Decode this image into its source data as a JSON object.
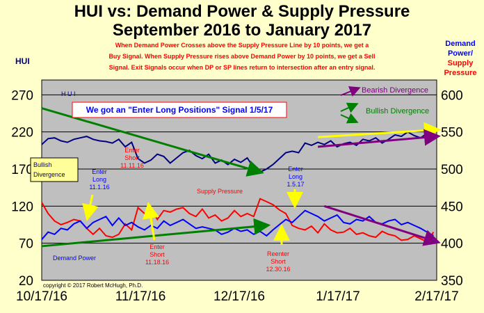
{
  "chart_data": {
    "type": "line",
    "title": "HUI vs: Demand Power & Supply Pressure",
    "subtitle": "September 2016 to January 2017",
    "rule_text": [
      "When Demand Power Crosses  above the Supply Pressure Line by 10 points, we get a",
      "Buy Signal.  When Supply Pressure rises above Demand Power by 10 points, we get a Sell",
      "Signal.  Exit Signals occur when DP or SP lines return to intersection after an entry signal."
    ],
    "left_axis_label": "HUI",
    "right_axis_label": [
      "Demand",
      "Power/",
      "Supply",
      "Pressure"
    ],
    "left_ticks": [
      20,
      70,
      120,
      170,
      220,
      270
    ],
    "right_ticks": [
      350,
      400,
      450,
      500,
      550,
      600
    ],
    "left_ylim": [
      20,
      290
    ],
    "right_ylim": [
      350,
      620
    ],
    "x_ticks": [
      "10/17/16",
      "11/17/16",
      "12/17/16",
      "1/17/17",
      "2/17/17"
    ],
    "x_range": [
      0,
      123
    ],
    "grid": true,
    "copyright": "copyright © 2017  Robert McHugh, Ph.D.",
    "signal_box": "We got an \"Enter Long Positions\" Signal 1/5/17",
    "series": [
      {
        "name": "HUI",
        "color": "#000080",
        "x": [
          0,
          2,
          4,
          6,
          8,
          10,
          12,
          14,
          16,
          18,
          20,
          22,
          24,
          26,
          28,
          30,
          32,
          34,
          36,
          38,
          40,
          42,
          44,
          46,
          48,
          50,
          52,
          54,
          56,
          58,
          60,
          62,
          64,
          66,
          68,
          70,
          72,
          74,
          76,
          78,
          80,
          82,
          84,
          86,
          88,
          90,
          92,
          94,
          96,
          98,
          100,
          102,
          104,
          106,
          108,
          110,
          112,
          114,
          116,
          118,
          120,
          122
        ],
        "values": [
          203,
          211,
          212,
          208,
          206,
          210,
          212,
          214,
          210,
          208,
          207,
          205,
          210,
          200,
          206,
          184,
          178,
          182,
          190,
          187,
          178,
          185,
          192,
          195,
          188,
          184,
          190,
          178,
          182,
          176,
          183,
          179,
          185,
          172,
          166,
          170,
          176,
          184,
          192,
          194,
          192,
          205,
          202,
          206,
          203,
          208,
          200,
          204,
          206,
          202,
          210,
          208,
          212,
          205,
          210,
          216,
          214,
          220,
          215,
          212,
          218,
          210
        ]
      },
      {
        "name": "Supply Pressure",
        "color": "#ff0000",
        "x": [
          0,
          2,
          4,
          6,
          8,
          10,
          12,
          14,
          16,
          18,
          20,
          22,
          24,
          26,
          28,
          30,
          32,
          34,
          36,
          38,
          40,
          42,
          44,
          46,
          48,
          50,
          52,
          54,
          56,
          58,
          60,
          62,
          64,
          66,
          68,
          70,
          72,
          74,
          76,
          78,
          80,
          82,
          84,
          86,
          88,
          90,
          92,
          94,
          96,
          98,
          100,
          102,
          104,
          106,
          108,
          110,
          112,
          114,
          116,
          118,
          120,
          122
        ],
        "values": [
          455,
          440,
          430,
          425,
          428,
          432,
          430,
          420,
          412,
          420,
          410,
          408,
          412,
          426,
          418,
          448,
          440,
          448,
          432,
          444,
          442,
          446,
          448,
          440,
          436,
          446,
          434,
          438,
          430,
          434,
          444,
          436,
          440,
          436,
          460,
          456,
          452,
          445,
          440,
          424,
          420,
          418,
          423,
          414,
          426,
          418,
          414,
          415,
          420,
          412,
          414,
          410,
          408,
          416,
          412,
          410,
          404,
          405,
          410,
          406,
          402,
          415
        ]
      },
      {
        "name": "Demand Power",
        "color": "#0000ff",
        "x": [
          0,
          2,
          4,
          6,
          8,
          10,
          12,
          14,
          16,
          18,
          20,
          22,
          24,
          26,
          28,
          30,
          32,
          34,
          36,
          38,
          40,
          42,
          44,
          46,
          48,
          50,
          52,
          54,
          56,
          58,
          60,
          62,
          64,
          66,
          68,
          70,
          72,
          74,
          76,
          78,
          80,
          82,
          84,
          86,
          88,
          90,
          92,
          94,
          96,
          98,
          100,
          102,
          104,
          106,
          108,
          110,
          112,
          114,
          116,
          118,
          120,
          122
        ],
        "values": [
          405,
          415,
          412,
          420,
          418,
          426,
          430,
          420,
          428,
          432,
          436,
          424,
          434,
          424,
          428,
          422,
          418,
          424,
          420,
          430,
          424,
          428,
          432,
          426,
          420,
          422,
          420,
          418,
          412,
          415,
          420,
          416,
          418,
          412,
          416,
          410,
          418,
          425,
          432,
          428,
          436,
          444,
          440,
          436,
          430,
          434,
          438,
          428,
          426,
          432,
          430,
          436,
          428,
          426,
          430,
          432,
          425,
          428,
          424,
          420,
          415,
          410
        ]
      }
    ],
    "annotations": [
      {
        "text": "H U I",
        "color": "#000080"
      },
      {
        "text": "Bearish Divergence",
        "color": "#800080"
      },
      {
        "text": "Bullish Divergence",
        "color": "#008000"
      },
      {
        "text": "Bullish Divergence",
        "color": "#000080"
      },
      {
        "text": "Enter Long 11.1.16",
        "color": "#0000ff"
      },
      {
        "text": "Enter Short 11.11.16",
        "color": "#ff0000"
      },
      {
        "text": "Enter Short 11.18.16",
        "color": "#ff0000"
      },
      {
        "text": "Supply Pressure",
        "color": "#ff0000"
      },
      {
        "text": "Demand Power",
        "color": "#0000ff"
      },
      {
        "text": "Enter Long 1.5.17",
        "color": "#0000ff"
      },
      {
        "text": "Reenter Short 12.30.16",
        "color": "#ff0000"
      }
    ],
    "trend_lines": [
      {
        "name": "hui-downtrend",
        "color": "#008000",
        "axis": "left",
        "from": [
          0,
          252
        ],
        "to": [
          68,
          166
        ]
      },
      {
        "name": "hui-uptrend-upper",
        "color": "#ffff00",
        "axis": "left",
        "from": [
          86,
          213
        ],
        "to": [
          123,
          223
        ]
      },
      {
        "name": "hui-uptrend-lower",
        "color": "#800080",
        "axis": "left",
        "from": [
          86,
          200
        ],
        "to": [
          123,
          214
        ]
      },
      {
        "name": "dp-uptrend",
        "color": "#008000",
        "axis": "right",
        "from": [
          0,
          396
        ],
        "to": [
          70,
          424
        ]
      },
      {
        "name": "sp-downtrend",
        "color": "#800080",
        "axis": "right",
        "from": [
          88,
          450
        ],
        "to": [
          123,
          402
        ]
      }
    ]
  }
}
